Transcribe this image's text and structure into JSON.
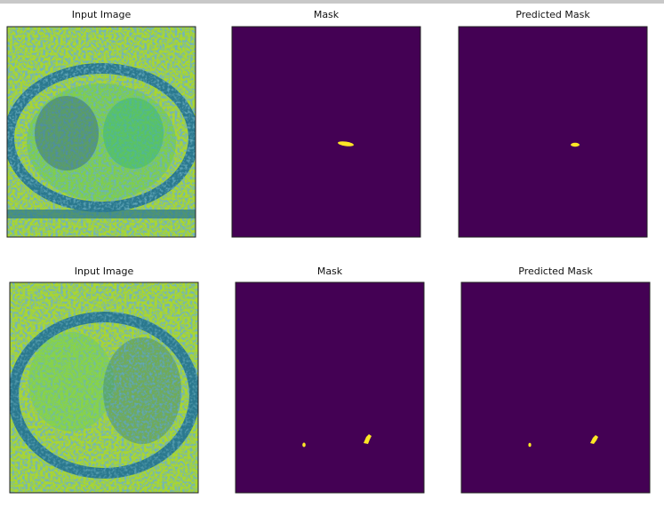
{
  "panels": [
    {
      "title": "Input Image"
    },
    {
      "title": "Mask"
    },
    {
      "title": "Predicted Mask"
    },
    {
      "title": "Input Image"
    },
    {
      "title": "Mask"
    },
    {
      "title": "Predicted Mask"
    }
  ]
}
